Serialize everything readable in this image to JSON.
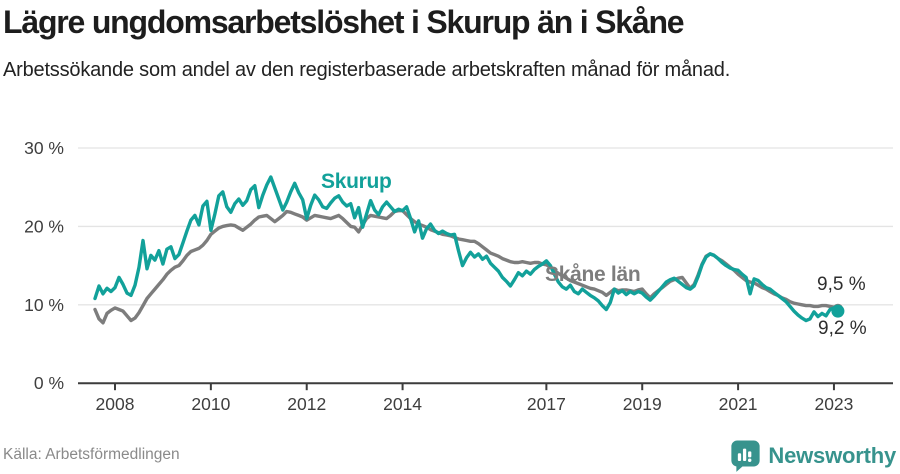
{
  "header": {
    "title": "Lägre ungdomsarbetslöshet i Skurup än i Skåne",
    "subtitle": "Arbetssökande som andel av den registerbaserade arbetskraften månad för månad."
  },
  "footer": {
    "source": "Källa: Arbetsförmedlingen",
    "brand": "Newsworthy"
  },
  "colors": {
    "skurup": "#12a19a",
    "skane": "#7d7d7d",
    "grid": "#e4e4e4",
    "axis": "#3c3c3c",
    "tick_text": "#3e3e3e",
    "value_label": "#2e2e2e",
    "brand": "#37938d",
    "background": "#ffffff"
  },
  "chart_data": {
    "type": "line",
    "title": "Lägre ungdomsarbetslöshet i Skurup än i Skåne",
    "subtitle": "Arbetssökande som andel av den registerbaserade arbetskraften månad för månad.",
    "xlabel": "",
    "ylabel": "",
    "ylim": [
      0,
      30
    ],
    "xlim": [
      2007.2,
      2024.2
    ],
    "grid": "horizontal",
    "legend_position": "inline-labels",
    "y_ticks": [
      0,
      10,
      20,
      30
    ],
    "y_tick_suffix": " %",
    "x_ticks": [
      2008,
      2010,
      2012,
      2014,
      2017,
      2019,
      2021,
      2023
    ],
    "x_unit": "year-monthly",
    "series": [
      {
        "id": "skane",
        "name": "Skåne län",
        "label": "Skåne län",
        "end_label": "9,5 %",
        "end_value": 9.5,
        "color": "#7d7d7d",
        "start_year": 2007.5833,
        "step_months": 1,
        "values": [
          9.4,
          8.2,
          7.7,
          8.9,
          9.3,
          9.6,
          9.4,
          9.2,
          8.6,
          8.0,
          8.3,
          9.0,
          9.9,
          10.8,
          11.4,
          12.0,
          12.6,
          13.2,
          13.9,
          14.4,
          14.8,
          15.0,
          15.6,
          16.3,
          16.8,
          17.0,
          17.2,
          17.6,
          18.2,
          19.0,
          19.4,
          19.8,
          20.0,
          20.1,
          20.2,
          20.1,
          19.8,
          19.5,
          19.9,
          20.3,
          20.8,
          21.2,
          21.3,
          21.4,
          21.0,
          20.6,
          21.0,
          21.4,
          21.9,
          21.8,
          21.6,
          21.4,
          21.2,
          20.8,
          21.1,
          21.4,
          21.3,
          21.2,
          21.1,
          21.0,
          21.2,
          21.4,
          21.0,
          20.5,
          20.0,
          19.9,
          19.3,
          20.2,
          21.0,
          21.4,
          21.3,
          21.2,
          21.1,
          21.0,
          21.4,
          21.9,
          22.0,
          22.0,
          21.5,
          21.0,
          20.6,
          20.3,
          20.1,
          19.9,
          19.6,
          19.4,
          19.2,
          19.0,
          18.9,
          18.8,
          18.6,
          18.4,
          18.3,
          18.2,
          18.1,
          18.1,
          17.8,
          17.4,
          17.0,
          16.6,
          16.4,
          16.2,
          15.9,
          15.7,
          15.5,
          15.4,
          15.4,
          15.5,
          15.4,
          15.3,
          15.4,
          15.4,
          15.2,
          15.1,
          14.8,
          14.4,
          14.0,
          13.7,
          13.4,
          13.1,
          12.9,
          12.7,
          12.5,
          12.3,
          12.1,
          12.0,
          11.8,
          11.6,
          11.2,
          11.6,
          12.0,
          11.8,
          11.9,
          11.9,
          11.8,
          11.7,
          11.9,
          12.0,
          11.4,
          10.9,
          11.4,
          11.8,
          12.2,
          12.6,
          13.0,
          13.2,
          13.4,
          13.5,
          12.8,
          12.1,
          12.6,
          13.8,
          15.2,
          16.2,
          16.5,
          16.3,
          15.9,
          15.6,
          15.2,
          14.8,
          14.4,
          13.9,
          13.5,
          13.1,
          12.9,
          12.8,
          12.5,
          12.2,
          12.0,
          11.7,
          11.4,
          11.2,
          10.9,
          10.7,
          10.4,
          10.2,
          10.1,
          10.0,
          9.9,
          9.9,
          9.8,
          9.8,
          9.9,
          9.9,
          9.8,
          9.7,
          9.5
        ]
      },
      {
        "id": "skurup",
        "name": "Skurup",
        "label": "Skurup",
        "end_label": "9,2 %",
        "end_value": 9.2,
        "color": "#12a19a",
        "start_year": 2007.5833,
        "step_months": 1,
        "values": [
          10.8,
          12.4,
          11.4,
          12.1,
          11.7,
          12.2,
          13.5,
          12.6,
          11.5,
          11.2,
          12.5,
          14.8,
          18.2,
          14.6,
          16.3,
          15.7,
          16.9,
          15.2,
          17.1,
          17.4,
          15.9,
          16.4,
          17.9,
          19.4,
          20.8,
          21.4,
          20.2,
          22.6,
          23.2,
          19.5,
          21.6,
          23.9,
          24.4,
          22.5,
          21.8,
          22.9,
          23.5,
          22.7,
          23.3,
          24.7,
          25.2,
          22.4,
          24.0,
          25.3,
          26.3,
          24.9,
          23.5,
          22.1,
          23.1,
          24.4,
          25.5,
          24.3,
          23.4,
          21.0,
          22.7,
          24.0,
          23.4,
          22.5,
          22.3,
          23.0,
          23.6,
          23.9,
          23.1,
          22.6,
          22.9,
          21.1,
          22.4,
          19.9,
          21.6,
          23.3,
          22.1,
          21.5,
          22.5,
          23.1,
          22.5,
          21.9,
          22.2,
          22.0,
          22.5,
          21.0,
          19.3,
          20.7,
          18.5,
          19.7,
          20.3,
          19.5,
          19.1,
          19.4,
          19.1,
          18.9,
          19.0,
          16.9,
          15.0,
          16.0,
          16.7,
          16.1,
          16.5,
          15.8,
          16.2,
          15.3,
          14.8,
          14.3,
          13.5,
          13.0,
          12.4,
          13.2,
          14.1,
          13.7,
          14.3,
          13.9,
          14.5,
          14.9,
          15.2,
          15.6,
          15.0,
          13.9,
          12.9,
          12.3,
          12.0,
          12.5,
          11.7,
          11.4,
          12.0,
          11.6,
          11.2,
          10.9,
          10.5,
          9.9,
          9.4,
          10.3,
          12.0,
          11.5,
          11.8,
          11.3,
          11.7,
          11.4,
          11.7,
          11.5,
          11.0,
          10.6,
          11.1,
          11.7,
          12.3,
          12.9,
          13.2,
          13.4,
          13.0,
          12.6,
          12.2,
          12.0,
          12.4,
          13.6,
          15.1,
          16.1,
          16.5,
          16.3,
          15.9,
          15.4,
          15.0,
          14.7,
          14.5,
          14.4,
          13.9,
          13.5,
          11.4,
          13.3,
          13.1,
          12.6,
          12.2,
          12.0,
          11.6,
          11.2,
          10.8,
          10.4,
          9.8,
          9.2,
          8.7,
          8.3,
          8.0,
          8.2,
          9.1,
          8.5,
          8.9,
          8.6,
          9.4,
          9.6,
          9.2
        ]
      }
    ]
  }
}
